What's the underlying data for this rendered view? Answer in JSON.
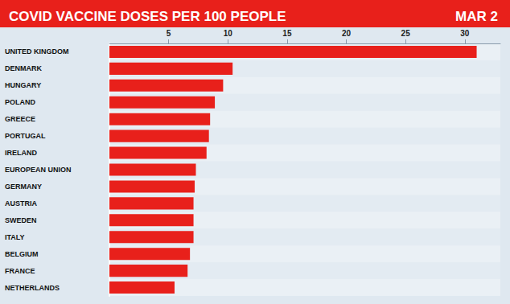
{
  "chart_data": {
    "type": "bar",
    "orientation": "horizontal",
    "title": "COVID VACCINE DOSES PER 100 PEOPLE",
    "subtitle": "MAR 2",
    "categories": [
      "UNITED KINGDOM",
      "DENMARK",
      "HUNGARY",
      "POLAND",
      "GREECE",
      "PORTUGAL",
      "IRELAND",
      "EUROPEAN UNION",
      "GERMANY",
      "AUSTRIA",
      "SWEDEN",
      "ITALY",
      "BELGIUM",
      "FRANCE",
      "NETHERLANDS"
    ],
    "values": [
      31,
      10.4,
      9.6,
      8.9,
      8.5,
      8.4,
      8.2,
      7.3,
      7.2,
      7.1,
      7.1,
      7.1,
      6.8,
      6.6,
      5.5
    ],
    "color": "#e8201b",
    "xlim": [
      0,
      33
    ],
    "xticks": [
      5,
      10,
      15,
      20,
      25,
      30
    ],
    "grid": false
  }
}
